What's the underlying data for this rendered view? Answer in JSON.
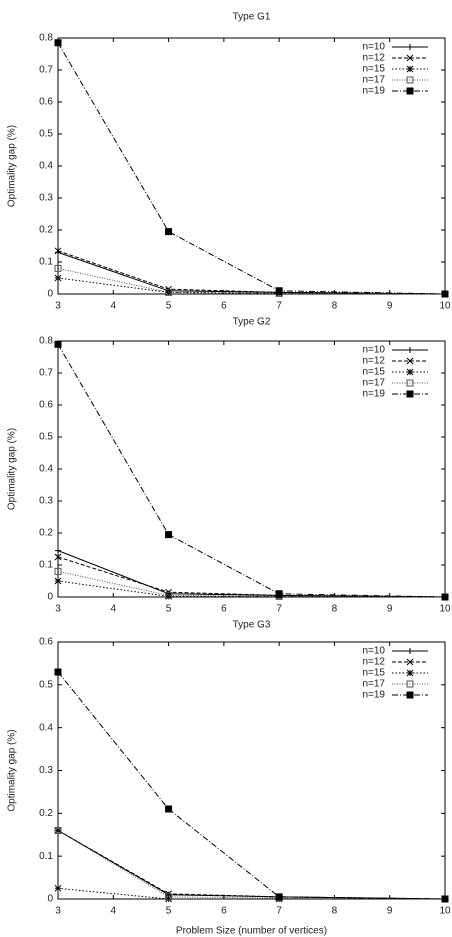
{
  "chart_data": [
    {
      "type": "line",
      "title": "Type G1",
      "ylabel": "Optimality gap (%)",
      "x": [
        3,
        5,
        7,
        10
      ],
      "xlim": [
        3,
        10
      ],
      "xticks": [
        3,
        4,
        5,
        6,
        7,
        8,
        9,
        10
      ],
      "ylim": [
        0,
        0.8
      ],
      "yticks": [
        0,
        0.1,
        0.2,
        0.3,
        0.4,
        0.5,
        0.6,
        0.7,
        0.8
      ],
      "legend": "upper right",
      "series": [
        {
          "name": "n=10",
          "color": "#000000",
          "values": [
            0.13,
            0.01,
            0.005,
            0
          ]
        },
        {
          "name": "n=12",
          "color": "#000000",
          "values": [
            0.135,
            0.015,
            0.005,
            0
          ]
        },
        {
          "name": "n=15",
          "color": "#000000",
          "values": [
            0.05,
            0.005,
            0.002,
            0
          ]
        },
        {
          "name": "n=17",
          "color": "#555555",
          "values": [
            0.08,
            0.005,
            0.002,
            0
          ]
        },
        {
          "name": "n=19",
          "color": "#000000",
          "values": [
            0.785,
            0.195,
            0.01,
            0
          ]
        }
      ]
    },
    {
      "type": "line",
      "title": "Type G2",
      "ylabel": "Optimality gap (%)",
      "x": [
        3,
        5,
        7,
        10
      ],
      "xlim": [
        3,
        10
      ],
      "xticks": [
        3,
        4,
        5,
        6,
        7,
        8,
        9,
        10
      ],
      "ylim": [
        0,
        0.8
      ],
      "yticks": [
        0,
        0.1,
        0.2,
        0.3,
        0.4,
        0.5,
        0.6,
        0.7,
        0.8
      ],
      "legend": "upper right",
      "series": [
        {
          "name": "n=10",
          "color": "#000000",
          "values": [
            0.145,
            0.01,
            0.005,
            0
          ]
        },
        {
          "name": "n=12",
          "color": "#000000",
          "values": [
            0.125,
            0.015,
            0.005,
            0
          ]
        },
        {
          "name": "n=15",
          "color": "#000000",
          "values": [
            0.05,
            0.002,
            0.002,
            0
          ]
        },
        {
          "name": "n=17",
          "color": "#555555",
          "values": [
            0.08,
            0.005,
            0.002,
            0
          ]
        },
        {
          "name": "n=19",
          "color": "#000000",
          "values": [
            0.79,
            0.195,
            0.01,
            0
          ]
        }
      ]
    },
    {
      "type": "line",
      "title": "Type G3",
      "ylabel": "Optimality gap (%)",
      "xlabel": "Problem Size (number of vertices)",
      "x": [
        3,
        5,
        7,
        10
      ],
      "xlim": [
        3,
        10
      ],
      "xticks": [
        3,
        4,
        5,
        6,
        7,
        8,
        9,
        10
      ],
      "ylim": [
        0,
        0.6
      ],
      "yticks": [
        0,
        0.1,
        0.2,
        0.3,
        0.4,
        0.5,
        0.6
      ],
      "legend": "upper right",
      "series": [
        {
          "name": "n=10",
          "color": "#000000",
          "values": [
            0.16,
            0.01,
            0.005,
            0
          ]
        },
        {
          "name": "n=12",
          "color": "#000000",
          "values": [
            0.16,
            0.012,
            0.005,
            0
          ]
        },
        {
          "name": "n=15",
          "color": "#000000",
          "values": [
            0.025,
            0,
            0,
            0
          ]
        },
        {
          "name": "n=17",
          "color": "#555555",
          "values": [
            0.16,
            0.005,
            0.002,
            0
          ]
        },
        {
          "name": "n=19",
          "color": "#000000",
          "values": [
            0.53,
            0.21,
            0.005,
            0
          ]
        }
      ]
    }
  ]
}
